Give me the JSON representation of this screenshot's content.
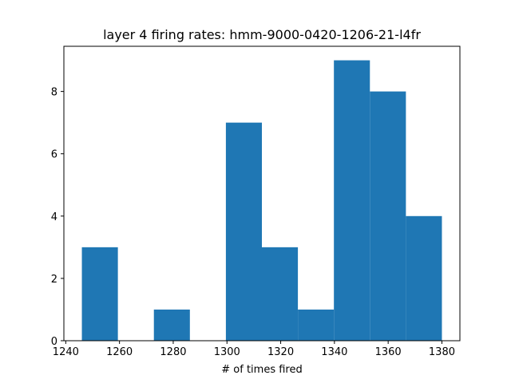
{
  "chart_data": {
    "type": "bar",
    "title": "layer 4 firing rates: hmm-9000-0420-1206-21-l4fr",
    "xlabel": "# of times fired",
    "ylabel": "",
    "bins": [
      {
        "x0": 1246.0,
        "x1": 1259.4,
        "count": 3
      },
      {
        "x0": 1259.4,
        "x1": 1272.8,
        "count": 0
      },
      {
        "x0": 1272.8,
        "x1": 1286.2,
        "count": 1
      },
      {
        "x0": 1286.2,
        "x1": 1299.6,
        "count": 0
      },
      {
        "x0": 1299.6,
        "x1": 1313.0,
        "count": 7
      },
      {
        "x0": 1313.0,
        "x1": 1326.4,
        "count": 3
      },
      {
        "x0": 1326.4,
        "x1": 1339.8,
        "count": 1
      },
      {
        "x0": 1339.8,
        "x1": 1353.2,
        "count": 9
      },
      {
        "x0": 1353.2,
        "x1": 1366.6,
        "count": 8
      },
      {
        "x0": 1366.6,
        "x1": 1380.0,
        "count": 4
      }
    ],
    "xlim": [
      1239.3,
      1386.7
    ],
    "ylim": [
      0,
      9.45
    ],
    "xticks": [
      1240,
      1260,
      1280,
      1300,
      1320,
      1340,
      1360,
      1380
    ],
    "yticks": [
      0,
      2,
      4,
      6,
      8
    ],
    "bar_color": "#1f77b4",
    "grid": false,
    "legend": "none"
  }
}
